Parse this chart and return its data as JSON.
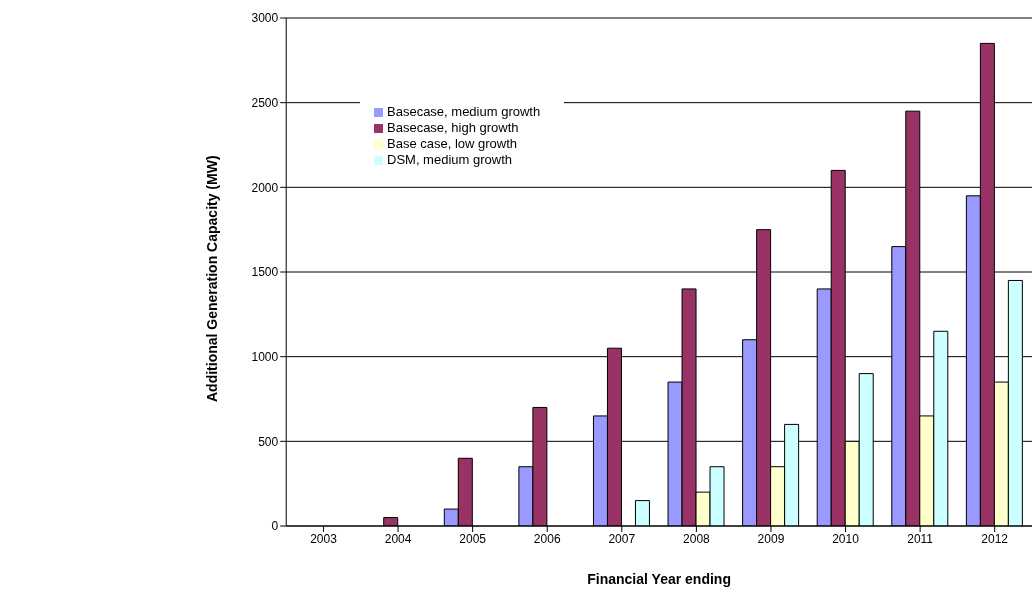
{
  "chart_data": {
    "type": "bar",
    "xlabel": "Financial Year ending",
    "ylabel": "Additional Generation Capacity (MW)",
    "categories": [
      "2003",
      "2004",
      "2005",
      "2006",
      "2007",
      "2008",
      "2009",
      "2010",
      "2011",
      "2012"
    ],
    "series": [
      {
        "name": "Basecase, medium growth",
        "color": "#9999ff",
        "values": [
          0,
          0,
          100,
          350,
          650,
          850,
          1100,
          1400,
          1650,
          1950
        ]
      },
      {
        "name": "Basecase, high growth",
        "color": "#993366",
        "values": [
          0,
          50,
          400,
          700,
          1050,
          1400,
          1750,
          2100,
          2450,
          2850
        ]
      },
      {
        "name": "Base case, low growth",
        "color": "#ffffcc",
        "values": [
          0,
          0,
          0,
          0,
          0,
          200,
          350,
          500,
          650,
          850
        ]
      },
      {
        "name": "DSM, medium growth",
        "color": "#ccffff",
        "values": [
          0,
          0,
          0,
          0,
          150,
          350,
          600,
          900,
          1150,
          1450
        ]
      }
    ],
    "ylim": [
      0,
      3000
    ],
    "yticks": [
      0,
      500,
      1000,
      1500,
      2000,
      2500,
      3000
    ],
    "grid": "y",
    "legend": "top"
  }
}
